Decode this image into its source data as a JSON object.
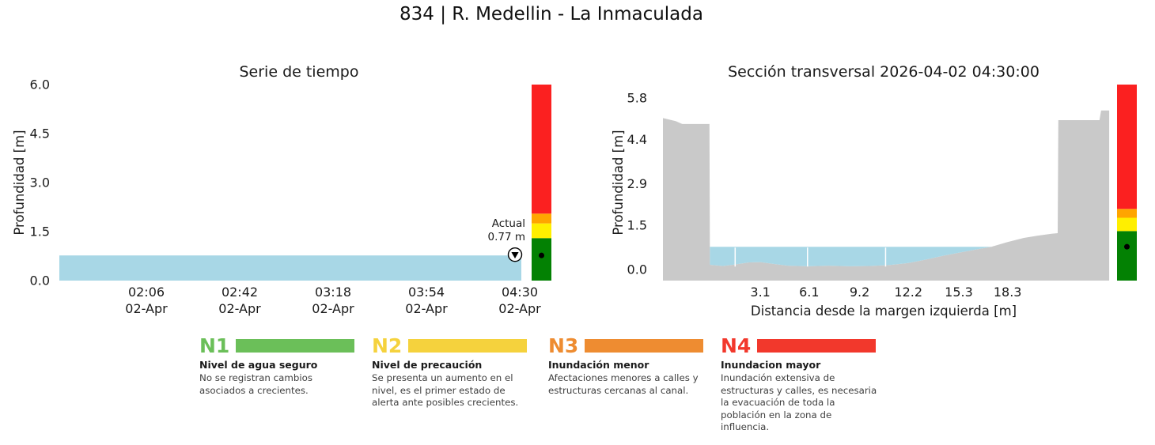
{
  "page_title": "834 | R. Medellin - La Inmaculada",
  "colors": {
    "water": "#a8d7e6",
    "terrain": "#c9c9c9",
    "text": "#1a1a1a"
  },
  "alert_levels": [
    {
      "code": "N1",
      "title": "Nivel de agua seguro",
      "description": "No se registran cambios asociados a crecientes.",
      "legend_color": "#6bbf59",
      "band_color": "#038103",
      "range_m": [
        0,
        1.3
      ]
    },
    {
      "code": "N2",
      "title": "Nivel de precaución",
      "description": "Se presenta un aumento en el nivel, es el primer estado de alerta ante posibles crecientes.",
      "legend_color": "#f5d23d",
      "band_color": "#ffef00",
      "range_m": [
        1.3,
        1.75
      ]
    },
    {
      "code": "N3",
      "title": "Inundación menor",
      "description": "Afectaciones menores a calles y estructuras cercanas al canal.",
      "legend_color": "#ee8c31",
      "band_color": "#ffa500",
      "range_m": [
        1.75,
        2.05
      ]
    },
    {
      "code": "N4",
      "title": "Inundacion mayor",
      "description": "Inundación extensiva de estructuras y calles, es necesaria la evacuación de toda la población en la zona de influencia.",
      "legend_color": "#f2382c",
      "band_color": "#fb2020",
      "range_m": [
        2.05,
        6.0
      ]
    }
  ],
  "chart_data": [
    {
      "type": "area",
      "title": "Serie de tiempo",
      "ylabel": "Profundidad [m]",
      "ylim": [
        0,
        6.0
      ],
      "yticks": [
        6.0,
        4.5,
        3.0,
        1.5,
        0.0
      ],
      "x_date": "02-Apr",
      "xticks": [
        "02:06",
        "02:42",
        "03:18",
        "03:54",
        "04:30"
      ],
      "series": [
        {
          "name": "Profundidad",
          "x": [
            "01:32",
            "02:06",
            "02:42",
            "03:18",
            "03:54",
            "04:30"
          ],
          "values": [
            0.77,
            0.77,
            0.77,
            0.77,
            0.77,
            0.77
          ]
        }
      ],
      "current": {
        "label": "Actual",
        "value_m": 0.77,
        "value_label": "0.77 m"
      }
    },
    {
      "type": "area",
      "title": "Sección transversal 2026-04-02 04:30:00",
      "ylabel": "Profundidad [m]",
      "xlabel": "Distancia desde la margen izquierda [m]",
      "ylim": [
        -0.37,
        6.25
      ],
      "yticks": [
        5.8,
        4.4,
        2.9,
        1.5,
        0.0
      ],
      "xticks": [
        3.1,
        6.1,
        9.2,
        12.2,
        15.3,
        18.3
      ],
      "water_level_m": 0.77,
      "water_extent_m": [
        0,
        17.3
      ],
      "water_segment_breaks_m": [
        1.55,
        6.0,
        10.8
      ],
      "terrain_profile_m": [
        [
          -2.89,
          5.12
        ],
        [
          -2.1,
          5.02
        ],
        [
          -1.7,
          4.92
        ],
        [
          -0.03,
          4.92
        ],
        [
          0.0,
          0.16
        ],
        [
          0.8,
          0.12
        ],
        [
          1.55,
          0.17
        ],
        [
          2.4,
          0.24
        ],
        [
          3.1,
          0.25
        ],
        [
          3.9,
          0.19
        ],
        [
          4.8,
          0.13
        ],
        [
          6.0,
          0.11
        ],
        [
          7.3,
          0.13
        ],
        [
          8.6,
          0.11
        ],
        [
          9.8,
          0.12
        ],
        [
          11.0,
          0.15
        ],
        [
          12.2,
          0.22
        ],
        [
          13.2,
          0.33
        ],
        [
          14.3,
          0.46
        ],
        [
          15.3,
          0.57
        ],
        [
          16.3,
          0.67
        ],
        [
          17.3,
          0.77
        ],
        [
          18.3,
          0.93
        ],
        [
          19.3,
          1.07
        ],
        [
          20.2,
          1.15
        ],
        [
          21.0,
          1.21
        ],
        [
          21.38,
          1.23
        ],
        [
          21.42,
          5.05
        ],
        [
          23.95,
          5.05
        ],
        [
          24.05,
          5.38
        ],
        [
          24.55,
          5.38
        ]
      ]
    }
  ]
}
